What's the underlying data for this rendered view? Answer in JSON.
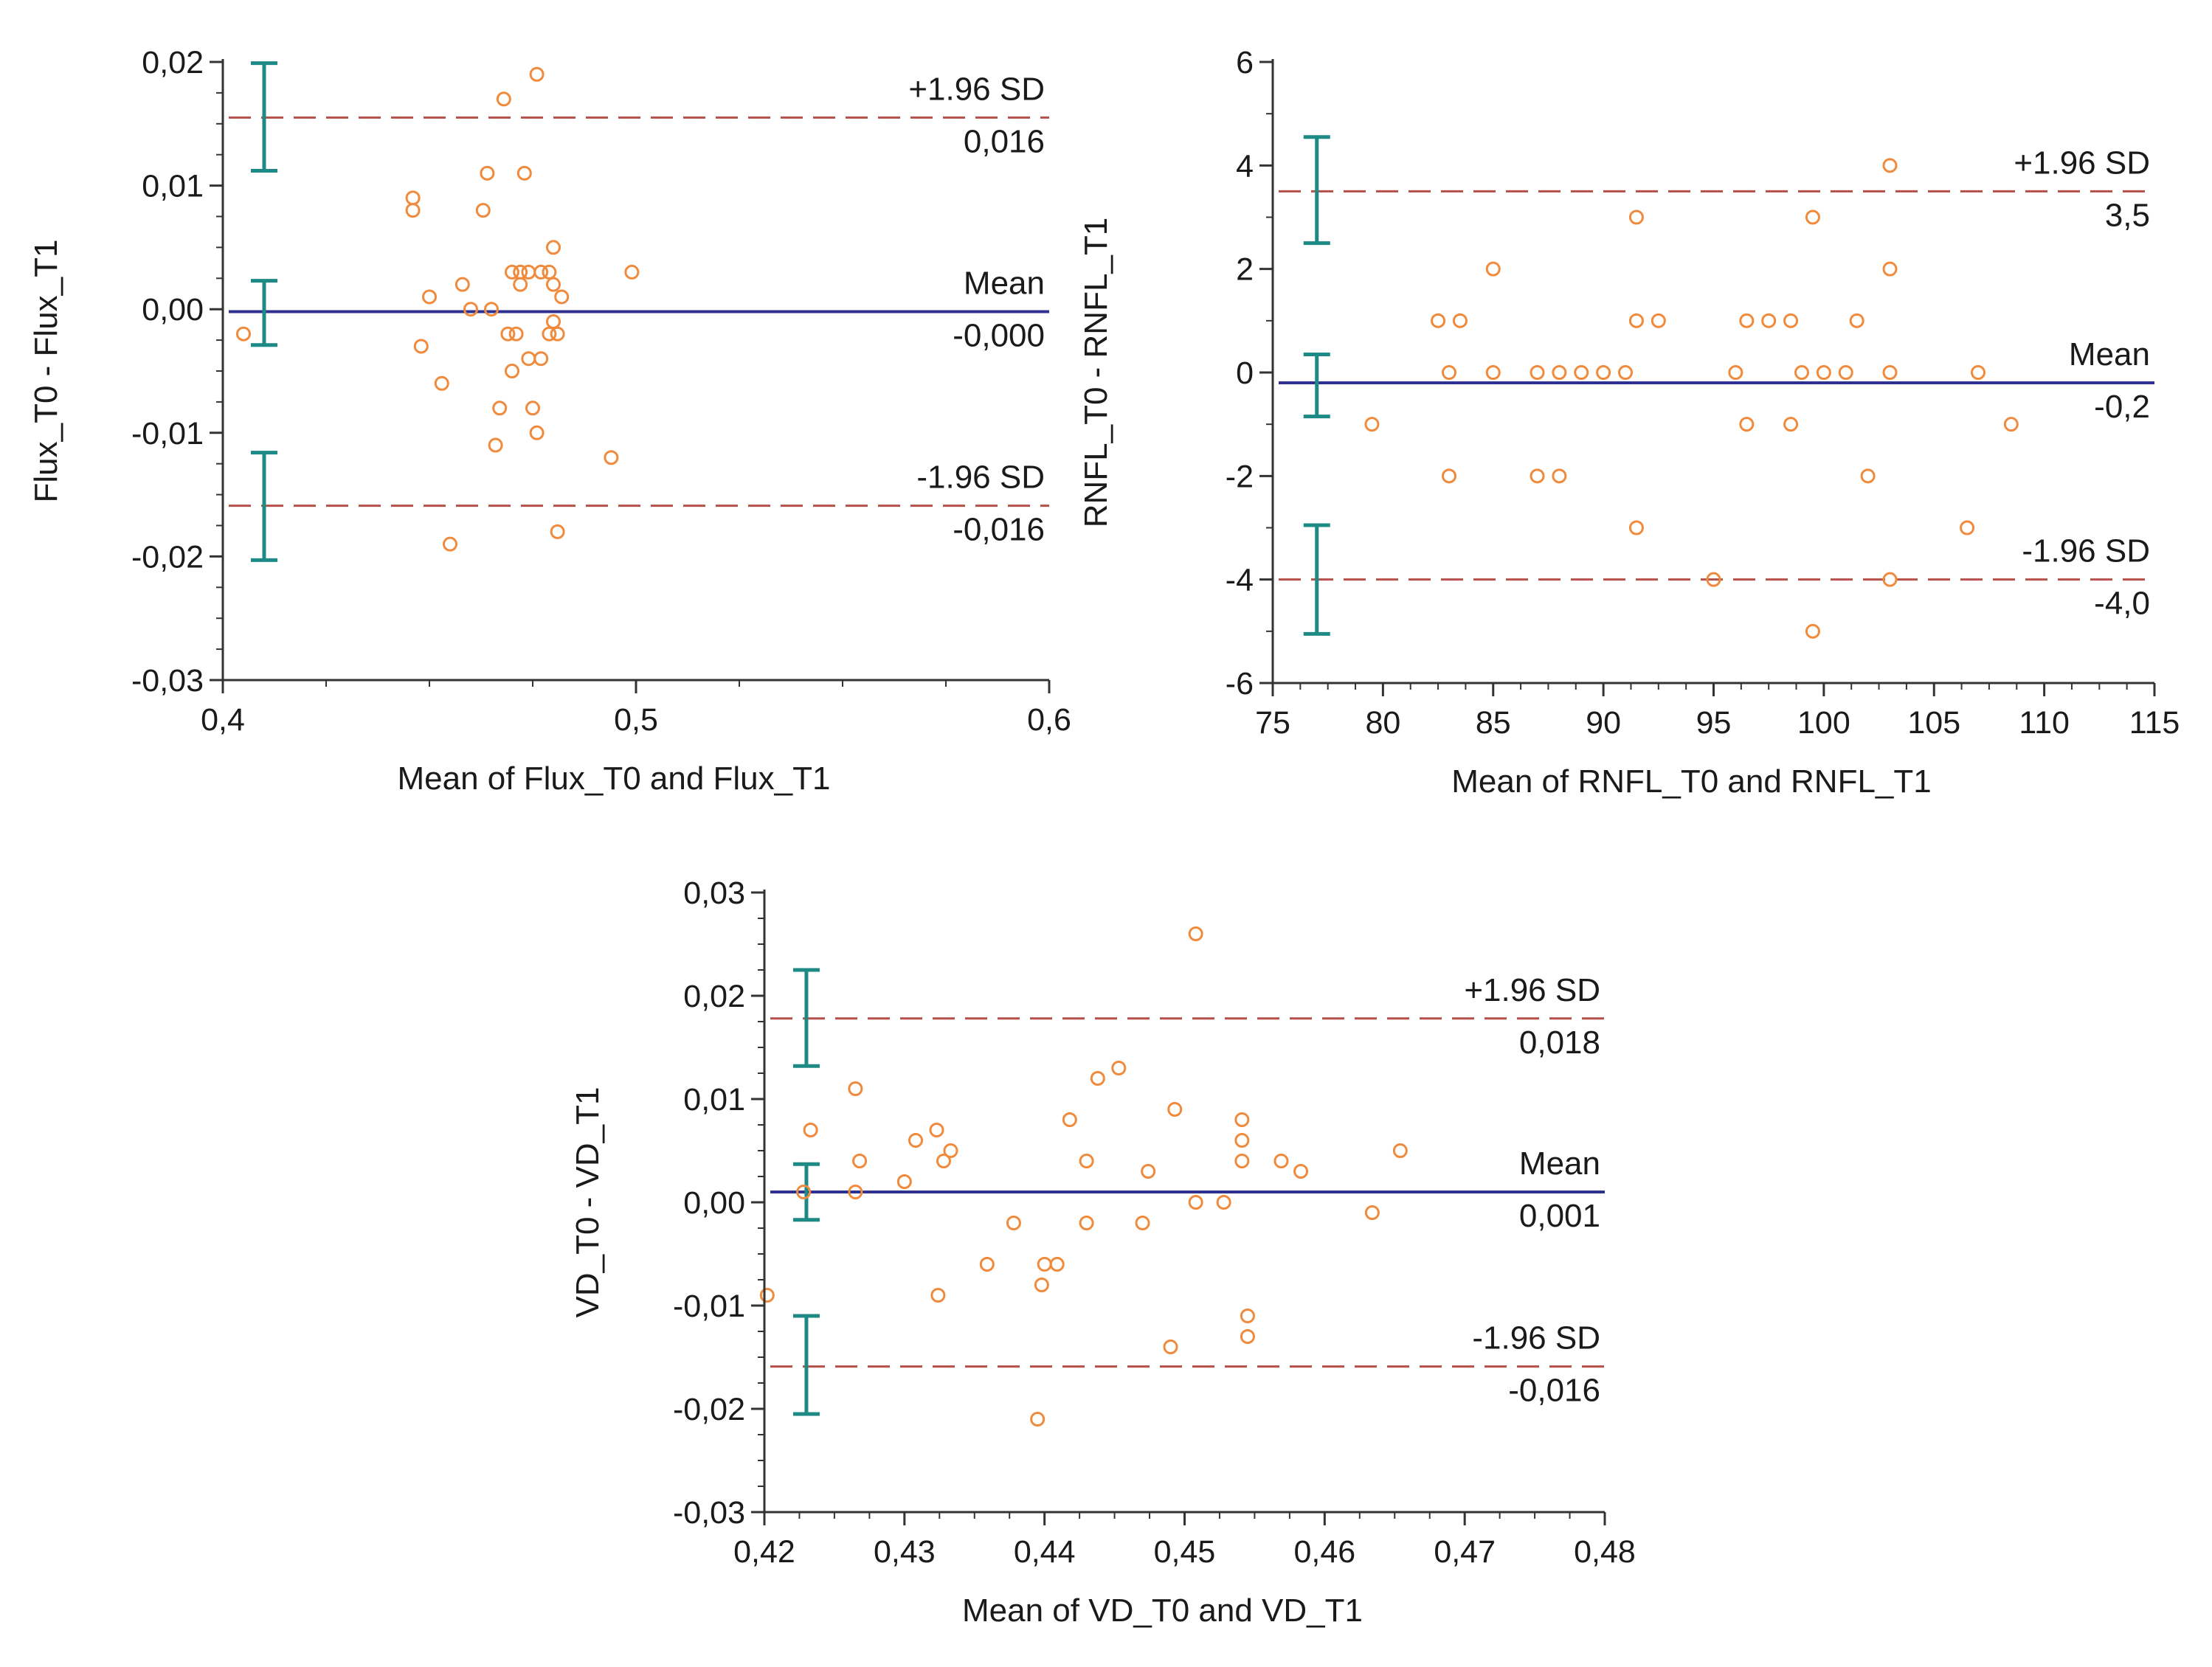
{
  "colors": {
    "points": "#f08a3c",
    "mean_line": "#2e3192",
    "limit_lines": "#b5504a",
    "ci_bars": "#1d8a85",
    "axes": "#333333"
  },
  "chart_data": [
    {
      "type": "scatter",
      "name": "flux",
      "xlabel": "Mean of Flux_T0 and Flux_T1",
      "ylabel": "Flux_T0 - Flux_T1",
      "xlim": [
        0.4,
        0.6
      ],
      "ylim": [
        -0.03,
        0.02
      ],
      "xticks": [
        {
          "v": 0.4,
          "label": "0,4"
        },
        {
          "v": 0.5,
          "label": "0,5"
        },
        {
          "v": 0.6,
          "label": "0,6"
        }
      ],
      "yticks": [
        {
          "v": 0.02,
          "label": "0,02"
        },
        {
          "v": 0.01,
          "label": "0,01"
        },
        {
          "v": 0.0,
          "label": "0,00"
        },
        {
          "v": -0.01,
          "label": "-0,01"
        },
        {
          "v": -0.02,
          "label": "-0,02"
        },
        {
          "v": -0.03,
          "label": "-0,03"
        }
      ],
      "yminor": 0.0025,
      "mean": {
        "value": -0.0002,
        "name": "Mean",
        "label": "-0,000"
      },
      "upper": {
        "value": 0.0155,
        "name": "+1.96 SD",
        "label": "0,016"
      },
      "lower": {
        "value": -0.0159,
        "name": "-1.96 SD",
        "label": "-0,016"
      },
      "ci": {
        "x": 0.41,
        "bars": [
          [
            0.0112,
            0.0199
          ],
          [
            -0.0029,
            0.0023
          ],
          [
            -0.0203,
            -0.0116
          ]
        ]
      },
      "points": [
        [
          0.405,
          -0.002
        ],
        [
          0.446,
          0.008
        ],
        [
          0.446,
          0.009
        ],
        [
          0.448,
          -0.003
        ],
        [
          0.45,
          0.001
        ],
        [
          0.453,
          -0.006
        ],
        [
          0.455,
          -0.019
        ],
        [
          0.458,
          0.002
        ],
        [
          0.46,
          0.0
        ],
        [
          0.463,
          0.008
        ],
        [
          0.464,
          0.011
        ],
        [
          0.465,
          0.0
        ],
        [
          0.466,
          -0.011
        ],
        [
          0.467,
          -0.008
        ],
        [
          0.468,
          0.017
        ],
        [
          0.469,
          -0.002
        ],
        [
          0.47,
          -0.005
        ],
        [
          0.47,
          0.003
        ],
        [
          0.471,
          -0.002
        ],
        [
          0.472,
          0.002
        ],
        [
          0.472,
          0.003
        ],
        [
          0.473,
          0.011
        ],
        [
          0.474,
          -0.004
        ],
        [
          0.474,
          0.003
        ],
        [
          0.475,
          -0.008
        ],
        [
          0.476,
          0.019
        ],
        [
          0.476,
          -0.01
        ],
        [
          0.477,
          0.003
        ],
        [
          0.477,
          -0.004
        ],
        [
          0.479,
          0.003
        ],
        [
          0.479,
          -0.002
        ],
        [
          0.48,
          0.005
        ],
        [
          0.48,
          0.002
        ],
        [
          0.48,
          -0.001
        ],
        [
          0.481,
          -0.002
        ],
        [
          0.481,
          -0.018
        ],
        [
          0.482,
          0.001
        ],
        [
          0.494,
          -0.012
        ],
        [
          0.499,
          0.003
        ]
      ]
    },
    {
      "type": "scatter",
      "name": "rnfl",
      "xlabel": "Mean of RNFL_T0 and RNFL_T1",
      "ylabel": "RNFL_T0 - RNFL_T1",
      "xlim": [
        75,
        115
      ],
      "ylim": [
        -6,
        6
      ],
      "xticks": [
        {
          "v": 75,
          "label": "75"
        },
        {
          "v": 80,
          "label": "80"
        },
        {
          "v": 85,
          "label": "85"
        },
        {
          "v": 90,
          "label": "90"
        },
        {
          "v": 95,
          "label": "95"
        },
        {
          "v": 100,
          "label": "100"
        },
        {
          "v": 105,
          "label": "105"
        },
        {
          "v": 110,
          "label": "110"
        },
        {
          "v": 115,
          "label": "115"
        }
      ],
      "yticks": [
        {
          "v": 6,
          "label": "6"
        },
        {
          "v": 4,
          "label": "4"
        },
        {
          "v": 2,
          "label": "2"
        },
        {
          "v": 0,
          "label": "0"
        },
        {
          "v": -2,
          "label": "-2"
        },
        {
          "v": -4,
          "label": "-4"
        },
        {
          "v": -6,
          "label": "-6"
        }
      ],
      "yminor": 1,
      "mean": {
        "value": -0.2,
        "name": "Mean",
        "label": "-0,2"
      },
      "upper": {
        "value": 3.5,
        "name": "+1.96 SD",
        "label": "3,5"
      },
      "lower": {
        "value": -4.0,
        "name": "-1.96 SD",
        "label": "-4,0"
      },
      "ci": {
        "x": 77,
        "bars": [
          [
            2.5,
            4.55
          ],
          [
            -0.85,
            0.35
          ],
          [
            -5.05,
            -2.95
          ]
        ]
      },
      "points": [
        [
          79.5,
          -1
        ],
        [
          82.5,
          1
        ],
        [
          83,
          0
        ],
        [
          83,
          -2
        ],
        [
          83.5,
          1
        ],
        [
          85,
          2
        ],
        [
          85,
          0
        ],
        [
          87,
          0
        ],
        [
          87,
          -2
        ],
        [
          88,
          0
        ],
        [
          88,
          -2
        ],
        [
          89,
          0
        ],
        [
          90,
          0
        ],
        [
          91,
          0
        ],
        [
          91.5,
          3
        ],
        [
          91.5,
          1
        ],
        [
          91.5,
          -3
        ],
        [
          92.5,
          1
        ],
        [
          95,
          -4
        ],
        [
          96,
          0
        ],
        [
          96.5,
          1
        ],
        [
          96.5,
          -1
        ],
        [
          97.5,
          1
        ],
        [
          98.5,
          1
        ],
        [
          98.5,
          -1
        ],
        [
          99,
          0
        ],
        [
          99.5,
          3
        ],
        [
          99.5,
          -5
        ],
        [
          100,
          0
        ],
        [
          101,
          0
        ],
        [
          101.5,
          1
        ],
        [
          102,
          -2
        ],
        [
          103,
          4
        ],
        [
          103,
          2
        ],
        [
          103,
          0
        ],
        [
          103,
          -4
        ],
        [
          106.5,
          -3
        ],
        [
          107,
          0
        ],
        [
          108.5,
          -1
        ]
      ]
    },
    {
      "type": "scatter",
      "name": "vd",
      "xlabel": "Mean of VD_T0 and VD_T1",
      "ylabel": "VD_T0 - VD_T1",
      "xlim": [
        0.42,
        0.48
      ],
      "ylim": [
        -0.03,
        0.03
      ],
      "xticks": [
        {
          "v": 0.42,
          "label": "0,42"
        },
        {
          "v": 0.43,
          "label": "0,43"
        },
        {
          "v": 0.44,
          "label": "0,44"
        },
        {
          "v": 0.45,
          "label": "0,45"
        },
        {
          "v": 0.46,
          "label": "0,46"
        },
        {
          "v": 0.47,
          "label": "0,47"
        },
        {
          "v": 0.48,
          "label": "0,48"
        }
      ],
      "yticks": [
        {
          "v": 0.03,
          "label": "0,03"
        },
        {
          "v": 0.02,
          "label": "0,02"
        },
        {
          "v": 0.01,
          "label": "0,01"
        },
        {
          "v": 0.0,
          "label": "0,00"
        },
        {
          "v": -0.01,
          "label": "-0,01"
        },
        {
          "v": -0.02,
          "label": "-0,02"
        },
        {
          "v": -0.03,
          "label": "-0,03"
        }
      ],
      "yminor": 0.0025,
      "mean": {
        "value": 0.001,
        "name": "Mean",
        "label": "0,001"
      },
      "upper": {
        "value": 0.0178,
        "name": "+1.96 SD",
        "label": "0,018"
      },
      "lower": {
        "value": -0.0159,
        "name": "-1.96 SD",
        "label": "-0,016"
      },
      "ci": {
        "x": 0.423,
        "bars": [
          [
            0.0132,
            0.0225
          ],
          [
            -0.0017,
            0.0037
          ],
          [
            -0.0205,
            -0.011
          ]
        ]
      },
      "points": [
        [
          0.4202,
          -0.009
        ],
        [
          0.4228,
          0.001
        ],
        [
          0.4233,
          0.007
        ],
        [
          0.4265,
          0.011
        ],
        [
          0.4265,
          0.001
        ],
        [
          0.4268,
          0.004
        ],
        [
          0.43,
          0.002
        ],
        [
          0.4308,
          0.006
        ],
        [
          0.4323,
          0.007
        ],
        [
          0.4324,
          -0.009
        ],
        [
          0.4328,
          0.004
        ],
        [
          0.4333,
          0.005
        ],
        [
          0.4359,
          -0.006
        ],
        [
          0.4378,
          -0.002
        ],
        [
          0.4395,
          -0.021
        ],
        [
          0.4398,
          -0.008
        ],
        [
          0.44,
          -0.006
        ],
        [
          0.4409,
          -0.006
        ],
        [
          0.4418,
          0.008
        ],
        [
          0.443,
          0.004
        ],
        [
          0.443,
          -0.002
        ],
        [
          0.4438,
          0.012
        ],
        [
          0.4453,
          0.013
        ],
        [
          0.447,
          -0.002
        ],
        [
          0.4474,
          0.003
        ],
        [
          0.449,
          -0.014
        ],
        [
          0.4493,
          0.009
        ],
        [
          0.4508,
          0.026
        ],
        [
          0.4508,
          0.0
        ],
        [
          0.4528,
          0.0
        ],
        [
          0.4541,
          0.008
        ],
        [
          0.4541,
          0.006
        ],
        [
          0.4541,
          0.004
        ],
        [
          0.4545,
          -0.011
        ],
        [
          0.4545,
          -0.013
        ],
        [
          0.4569,
          0.004
        ],
        [
          0.4583,
          0.003
        ],
        [
          0.4634,
          -0.001
        ],
        [
          0.4654,
          0.005
        ]
      ]
    }
  ]
}
